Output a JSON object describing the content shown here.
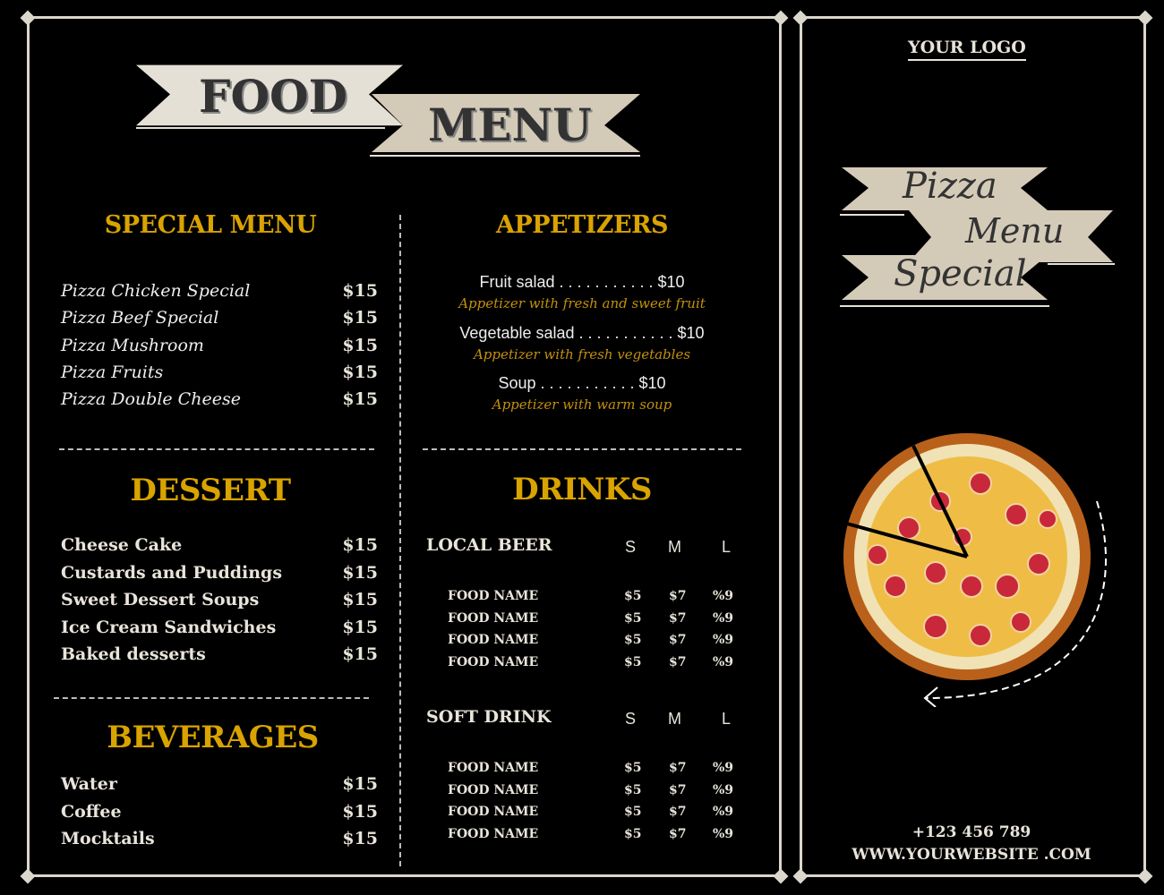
{
  "title": {
    "word1": "FOOD",
    "word2": "MENU"
  },
  "special_menu": {
    "heading": "SPECIAL MENU",
    "items": [
      {
        "name": "Pizza Chicken Special",
        "price": "$15"
      },
      {
        "name": "Pizza Beef Special",
        "price": "$15"
      },
      {
        "name": "Pizza Mushroom",
        "price": "$15"
      },
      {
        "name": "Pizza Fruits",
        "price": "$15"
      },
      {
        "name": "Pizza Double Cheese",
        "price": "$15"
      }
    ]
  },
  "appetizers": {
    "heading": "APPETIZERS",
    "items": [
      {
        "line": "Fruit salad  . . . . . . . . . . . $10",
        "desc": "Appetizer with fresh and sweet fruit"
      },
      {
        "line": "Vegetable salad . . . . . . . . . . . $10",
        "desc": "Appetizer with fresh vegetables"
      },
      {
        "line": "Soup . . . . . . . . . . . $10",
        "desc": "Appetizer with warm soup"
      }
    ]
  },
  "dessert": {
    "heading": "DESSERT",
    "items": [
      {
        "name": "Cheese Cake",
        "price": "$15"
      },
      {
        "name": "Custards and Puddings",
        "price": "$15"
      },
      {
        "name": "Sweet Dessert Soups",
        "price": "$15"
      },
      {
        "name": "Ice Cream Sandwiches",
        "price": "$15"
      },
      {
        "name": "Baked desserts",
        "price": "$15"
      }
    ]
  },
  "beverages": {
    "heading": "BEVERAGES",
    "items": [
      {
        "name": "Water",
        "price": "$15"
      },
      {
        "name": "Coffee",
        "price": "$15"
      },
      {
        "name": "Mocktails",
        "price": "$15"
      }
    ]
  },
  "drinks": {
    "heading": "DRINKS",
    "sizes": [
      "S",
      "M",
      "L"
    ],
    "groups": [
      {
        "name": "LOCAL BEER",
        "rows": [
          [
            "FOOD NAME",
            "$5",
            "$7",
            "%9"
          ],
          [
            "FOOD NAME",
            "$5",
            "$7",
            "%9"
          ],
          [
            "FOOD NAME",
            "$5",
            "$7",
            "%9"
          ],
          [
            "FOOD NAME",
            "$5",
            "$7",
            "%9"
          ]
        ]
      },
      {
        "name": "SOFT DRINK",
        "rows": [
          [
            "FOOD NAME",
            "$5",
            "$7",
            "%9"
          ],
          [
            "FOOD NAME",
            "$5",
            "$7",
            "%9"
          ],
          [
            "FOOD NAME",
            "$5",
            "$7",
            "%9"
          ],
          [
            "FOOD NAME",
            "$5",
            "$7",
            "%9"
          ]
        ]
      }
    ]
  },
  "right_panel": {
    "logo": "YOUR LOGO",
    "banner": [
      "Pizza",
      "Menu",
      "Special"
    ],
    "phone": "+123 456 789",
    "website": "WWW.YOURWEBSITE .COM"
  },
  "colors": {
    "accent": "#d9a300",
    "cream": "#e8e4da",
    "banner": "#d4cab8",
    "background": "#000000"
  }
}
